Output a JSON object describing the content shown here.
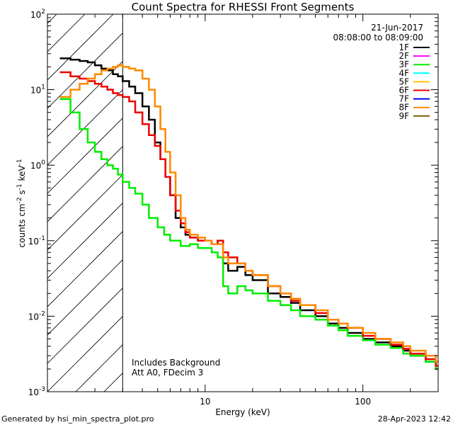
{
  "chart_data": {
    "type": "line",
    "title": "Count Spectra for RHESSI Front Segments",
    "xlabel": "Energy (keV)",
    "ylabel": "counts cm-2 s-1 keV-1",
    "xscale": "log",
    "yscale": "log",
    "xlim": [
      1,
      300
    ],
    "ylim": [
      0.001,
      100
    ],
    "x_ticks": [
      {
        "value": 10,
        "label": "10"
      },
      {
        "value": 100,
        "label": "100"
      }
    ],
    "y_ticks": [
      {
        "value": 0.001,
        "base": "10",
        "exp": "-3"
      },
      {
        "value": 0.01,
        "base": "10",
        "exp": "-2"
      },
      {
        "value": 0.1,
        "base": "10",
        "exp": "-1"
      },
      {
        "value": 1,
        "base": "10",
        "exp": "0"
      },
      {
        "value": 10,
        "base": "10",
        "exp": "1"
      },
      {
        "value": 100,
        "base": "10",
        "exp": "2"
      }
    ],
    "date": "21-Jun-2017",
    "time_range": "08:08:00 to 08:09:00",
    "energy_threshold": 3,
    "notes": [
      "Includes Background",
      "Att A0, FDecim 3"
    ],
    "footer_left": "Generated by hsi_min_spectra_plot.pro",
    "footer_right": "28-Apr-2023 12:42",
    "legend": [
      {
        "label": "1F",
        "color": "#000000"
      },
      {
        "label": "2F",
        "color": "#ff00ff"
      },
      {
        "label": "3F",
        "color": "#00ee00"
      },
      {
        "label": "4F",
        "color": "#00ffff"
      },
      {
        "label": "5F",
        "color": "#ffc800"
      },
      {
        "label": "6F",
        "color": "#ee0000"
      },
      {
        "label": "7F",
        "color": "#0000ee"
      },
      {
        "label": "8F",
        "color": "#ff8800"
      },
      {
        "label": "9F",
        "color": "#806000"
      }
    ],
    "series": [
      {
        "name": "1F",
        "color": "#000000",
        "points": [
          [
            1.2,
            26
          ],
          [
            1.4,
            25
          ],
          [
            1.6,
            24
          ],
          [
            1.8,
            23
          ],
          [
            2.0,
            21
          ],
          [
            2.2,
            19
          ],
          [
            2.4,
            18
          ],
          [
            2.6,
            16
          ],
          [
            2.8,
            15
          ],
          [
            3.0,
            13
          ],
          [
            3.3,
            11
          ],
          [
            3.6,
            9
          ],
          [
            4.0,
            6
          ],
          [
            4.4,
            4
          ],
          [
            4.8,
            2
          ],
          [
            5.2,
            1.2
          ],
          [
            5.6,
            0.7
          ],
          [
            6.0,
            0.4
          ],
          [
            6.5,
            0.2
          ],
          [
            7,
            0.15
          ],
          [
            7.5,
            0.12
          ],
          [
            8,
            0.11
          ],
          [
            9,
            0.1
          ],
          [
            10,
            0.1
          ],
          [
            11,
            0.09
          ],
          [
            12,
            0.1
          ],
          [
            13,
            0.05
          ],
          [
            14,
            0.04
          ],
          [
            16,
            0.045
          ],
          [
            18,
            0.035
          ],
          [
            20,
            0.03
          ],
          [
            25,
            0.02
          ],
          [
            30,
            0.018
          ],
          [
            35,
            0.015
          ],
          [
            40,
            0.012
          ],
          [
            50,
            0.01
          ],
          [
            60,
            0.008
          ],
          [
            70,
            0.007
          ],
          [
            80,
            0.006
          ],
          [
            100,
            0.005
          ],
          [
            120,
            0.0045
          ],
          [
            150,
            0.004
          ],
          [
            180,
            0.0035
          ],
          [
            200,
            0.003
          ],
          [
            250,
            0.0025
          ],
          [
            290,
            0.002
          ]
        ]
      },
      {
        "name": "3F",
        "color": "#00ee00",
        "points": [
          [
            1.2,
            7.5
          ],
          [
            1.4,
            5
          ],
          [
            1.6,
            3
          ],
          [
            1.8,
            2
          ],
          [
            2.0,
            1.5
          ],
          [
            2.2,
            1.2
          ],
          [
            2.4,
            1.0
          ],
          [
            2.6,
            0.9
          ],
          [
            2.8,
            0.75
          ],
          [
            3.0,
            0.6
          ],
          [
            3.3,
            0.5
          ],
          [
            3.6,
            0.42
          ],
          [
            4.0,
            0.3
          ],
          [
            4.4,
            0.2
          ],
          [
            5.0,
            0.15
          ],
          [
            5.5,
            0.12
          ],
          [
            6,
            0.1
          ],
          [
            7,
            0.085
          ],
          [
            8,
            0.09
          ],
          [
            9,
            0.08
          ],
          [
            10,
            0.08
          ],
          [
            11,
            0.07
          ],
          [
            12,
            0.06
          ],
          [
            13,
            0.025
          ],
          [
            14,
            0.02
          ],
          [
            16,
            0.025
          ],
          [
            18,
            0.022
          ],
          [
            20,
            0.02
          ],
          [
            25,
            0.016
          ],
          [
            30,
            0.014
          ],
          [
            35,
            0.012
          ],
          [
            40,
            0.01
          ],
          [
            50,
            0.009
          ],
          [
            60,
            0.0075
          ],
          [
            70,
            0.0065
          ],
          [
            80,
            0.0055
          ],
          [
            100,
            0.0048
          ],
          [
            120,
            0.0042
          ],
          [
            150,
            0.0038
          ],
          [
            180,
            0.0032
          ],
          [
            200,
            0.003
          ],
          [
            250,
            0.0025
          ],
          [
            290,
            0.002
          ]
        ]
      },
      {
        "name": "6F",
        "color": "#ee0000",
        "points": [
          [
            1.2,
            17
          ],
          [
            1.4,
            15
          ],
          [
            1.6,
            14
          ],
          [
            1.8,
            13
          ],
          [
            2.0,
            12
          ],
          [
            2.2,
            11
          ],
          [
            2.4,
            10
          ],
          [
            2.6,
            9
          ],
          [
            2.8,
            8.5
          ],
          [
            3.0,
            8
          ],
          [
            3.3,
            7
          ],
          [
            3.6,
            5
          ],
          [
            4.0,
            3.5
          ],
          [
            4.4,
            2.5
          ],
          [
            4.8,
            1.8
          ],
          [
            5.2,
            1.2
          ],
          [
            5.6,
            0.7
          ],
          [
            6.0,
            0.4
          ],
          [
            6.5,
            0.25
          ],
          [
            7,
            0.17
          ],
          [
            7.5,
            0.13
          ],
          [
            8,
            0.11
          ],
          [
            9,
            0.1
          ],
          [
            10,
            0.1
          ],
          [
            11,
            0.09
          ],
          [
            12,
            0.1
          ],
          [
            13,
            0.07
          ],
          [
            14,
            0.06
          ],
          [
            16,
            0.05
          ],
          [
            18,
            0.04
          ],
          [
            20,
            0.035
          ],
          [
            25,
            0.025
          ],
          [
            30,
            0.02
          ],
          [
            35,
            0.016
          ],
          [
            40,
            0.014
          ],
          [
            50,
            0.011
          ],
          [
            60,
            0.009
          ],
          [
            70,
            0.008
          ],
          [
            80,
            0.007
          ],
          [
            100,
            0.0055
          ],
          [
            120,
            0.005
          ],
          [
            150,
            0.0042
          ],
          [
            180,
            0.0037
          ],
          [
            200,
            0.0032
          ],
          [
            250,
            0.0027
          ],
          [
            290,
            0.0022
          ]
        ]
      },
      {
        "name": "8F",
        "color": "#ff8800",
        "points": [
          [
            1.2,
            8
          ],
          [
            1.4,
            10
          ],
          [
            1.6,
            12
          ],
          [
            1.8,
            14
          ],
          [
            2.0,
            16
          ],
          [
            2.2,
            18
          ],
          [
            2.4,
            19
          ],
          [
            2.6,
            20
          ],
          [
            2.8,
            21
          ],
          [
            3.0,
            20
          ],
          [
            3.3,
            19
          ],
          [
            3.6,
            18
          ],
          [
            4.0,
            14
          ],
          [
            4.4,
            10
          ],
          [
            4.8,
            6
          ],
          [
            5.2,
            3
          ],
          [
            5.6,
            1.5
          ],
          [
            6.0,
            0.8
          ],
          [
            6.5,
            0.4
          ],
          [
            7,
            0.2
          ],
          [
            7.5,
            0.14
          ],
          [
            8,
            0.12
          ],
          [
            9,
            0.11
          ],
          [
            10,
            0.1
          ],
          [
            11,
            0.09
          ],
          [
            12,
            0.09
          ],
          [
            13,
            0.06
          ],
          [
            14,
            0.05
          ],
          [
            16,
            0.05
          ],
          [
            18,
            0.04
          ],
          [
            20,
            0.035
          ],
          [
            25,
            0.025
          ],
          [
            30,
            0.02
          ],
          [
            35,
            0.017
          ],
          [
            40,
            0.014
          ],
          [
            50,
            0.012
          ],
          [
            60,
            0.009
          ],
          [
            70,
            0.008
          ],
          [
            80,
            0.007
          ],
          [
            100,
            0.006
          ],
          [
            120,
            0.005
          ],
          [
            150,
            0.0045
          ],
          [
            180,
            0.004
          ],
          [
            200,
            0.0035
          ],
          [
            250,
            0.003
          ],
          [
            290,
            0.0025
          ]
        ]
      }
    ]
  }
}
